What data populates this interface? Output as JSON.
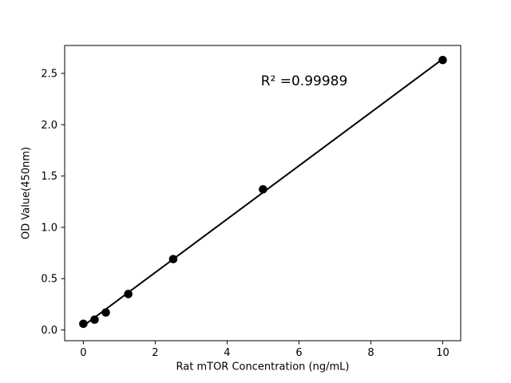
{
  "figure": {
    "background": "#ffffff",
    "foreground": "#000000"
  },
  "chart_data": {
    "type": "scatter",
    "title": "",
    "xlabel": "Rat mTOR Concentration (ng/mL)",
    "ylabel": "OD Value(450nm)",
    "annotation": "R² =0.99989",
    "r_squared": 0.99989,
    "x": [
      0,
      0.3125,
      0.625,
      1.25,
      2.5,
      5,
      10
    ],
    "y": [
      0.06,
      0.1,
      0.17,
      0.35,
      0.69,
      1.37,
      2.63
    ],
    "fit_line": {
      "x1": 0,
      "y1": 0.04,
      "x2": 10,
      "y2": 2.64
    },
    "xlim": [
      -0.52,
      10.5
    ],
    "ylim": [
      -0.105,
      2.772
    ],
    "xtick_values": [
      0,
      2,
      4,
      6,
      8,
      10
    ],
    "xtick_labels": [
      "0",
      "2",
      "4",
      "6",
      "8",
      "10"
    ],
    "ytick_values": [
      0,
      0.5,
      1,
      1.5,
      2,
      2.5
    ],
    "ytick_labels": [
      "0.0",
      "0.5",
      "1.0",
      "1.5",
      "2.0",
      "2.5"
    ],
    "grid": false,
    "legend": null,
    "marker_color": "#000000",
    "line_color": "#000000"
  }
}
